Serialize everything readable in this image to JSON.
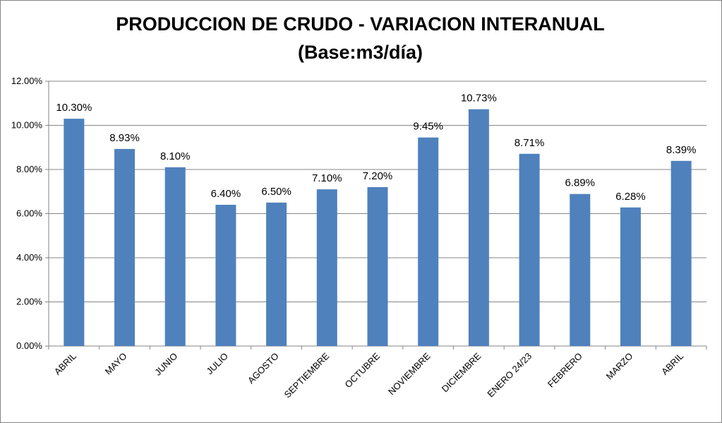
{
  "chart_data": {
    "type": "bar",
    "title": "PRODUCCION DE CRUDO - VARIACION INTERANUAL",
    "subtitle": "(Base:m3/día)",
    "categories": [
      "ABRIL",
      "MAYO",
      "JUNIO",
      "JULIO",
      "AGOSTO",
      "SEPTIEMBRE",
      "OCTUBRE",
      "NOVIEMBRE",
      "DICIEMBRE",
      "ENERO 24/23",
      "FEBRERO",
      "MARZO",
      "ABRIL"
    ],
    "values": [
      10.3,
      8.93,
      8.1,
      6.4,
      6.5,
      7.1,
      7.2,
      9.45,
      10.73,
      8.71,
      6.89,
      6.28,
      8.39
    ],
    "data_labels": [
      "10.30%",
      "8.93%",
      "8.10%",
      "6.40%",
      "6.50%",
      "7.10%",
      "7.20%",
      "9.45%",
      "10.73%",
      "8.71%",
      "6.89%",
      "6.28%",
      "8.39%"
    ],
    "ylim": [
      0,
      12
    ],
    "yticks": [
      0,
      2,
      4,
      6,
      8,
      10,
      12
    ],
    "ytick_labels": [
      "0.00%",
      "2.00%",
      "4.00%",
      "6.00%",
      "8.00%",
      "10.00%",
      "12.00%"
    ],
    "xlabel": "",
    "ylabel": "",
    "grid": true,
    "legend": "none",
    "bar_color": "#4f81bd",
    "grid_color": "#868686"
  }
}
